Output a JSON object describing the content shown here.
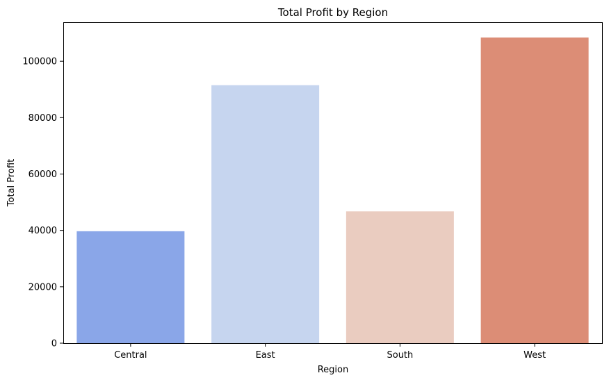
{
  "chart_data": {
    "type": "bar",
    "title": "Total Profit by Region",
    "xlabel": "Region",
    "ylabel": "Total Profit",
    "categories": [
      "Central",
      "East",
      "South",
      "West"
    ],
    "values": [
      39706,
      91523,
      46749,
      108418
    ],
    "colors": [
      "#8aa6e8",
      "#c6d5ef",
      "#eaccc0",
      "#dc8d76"
    ],
    "ylim": [
      0,
      113839
    ],
    "yticks": [
      0,
      20000,
      40000,
      60000,
      80000,
      100000
    ],
    "grid": false,
    "legend": "none"
  }
}
